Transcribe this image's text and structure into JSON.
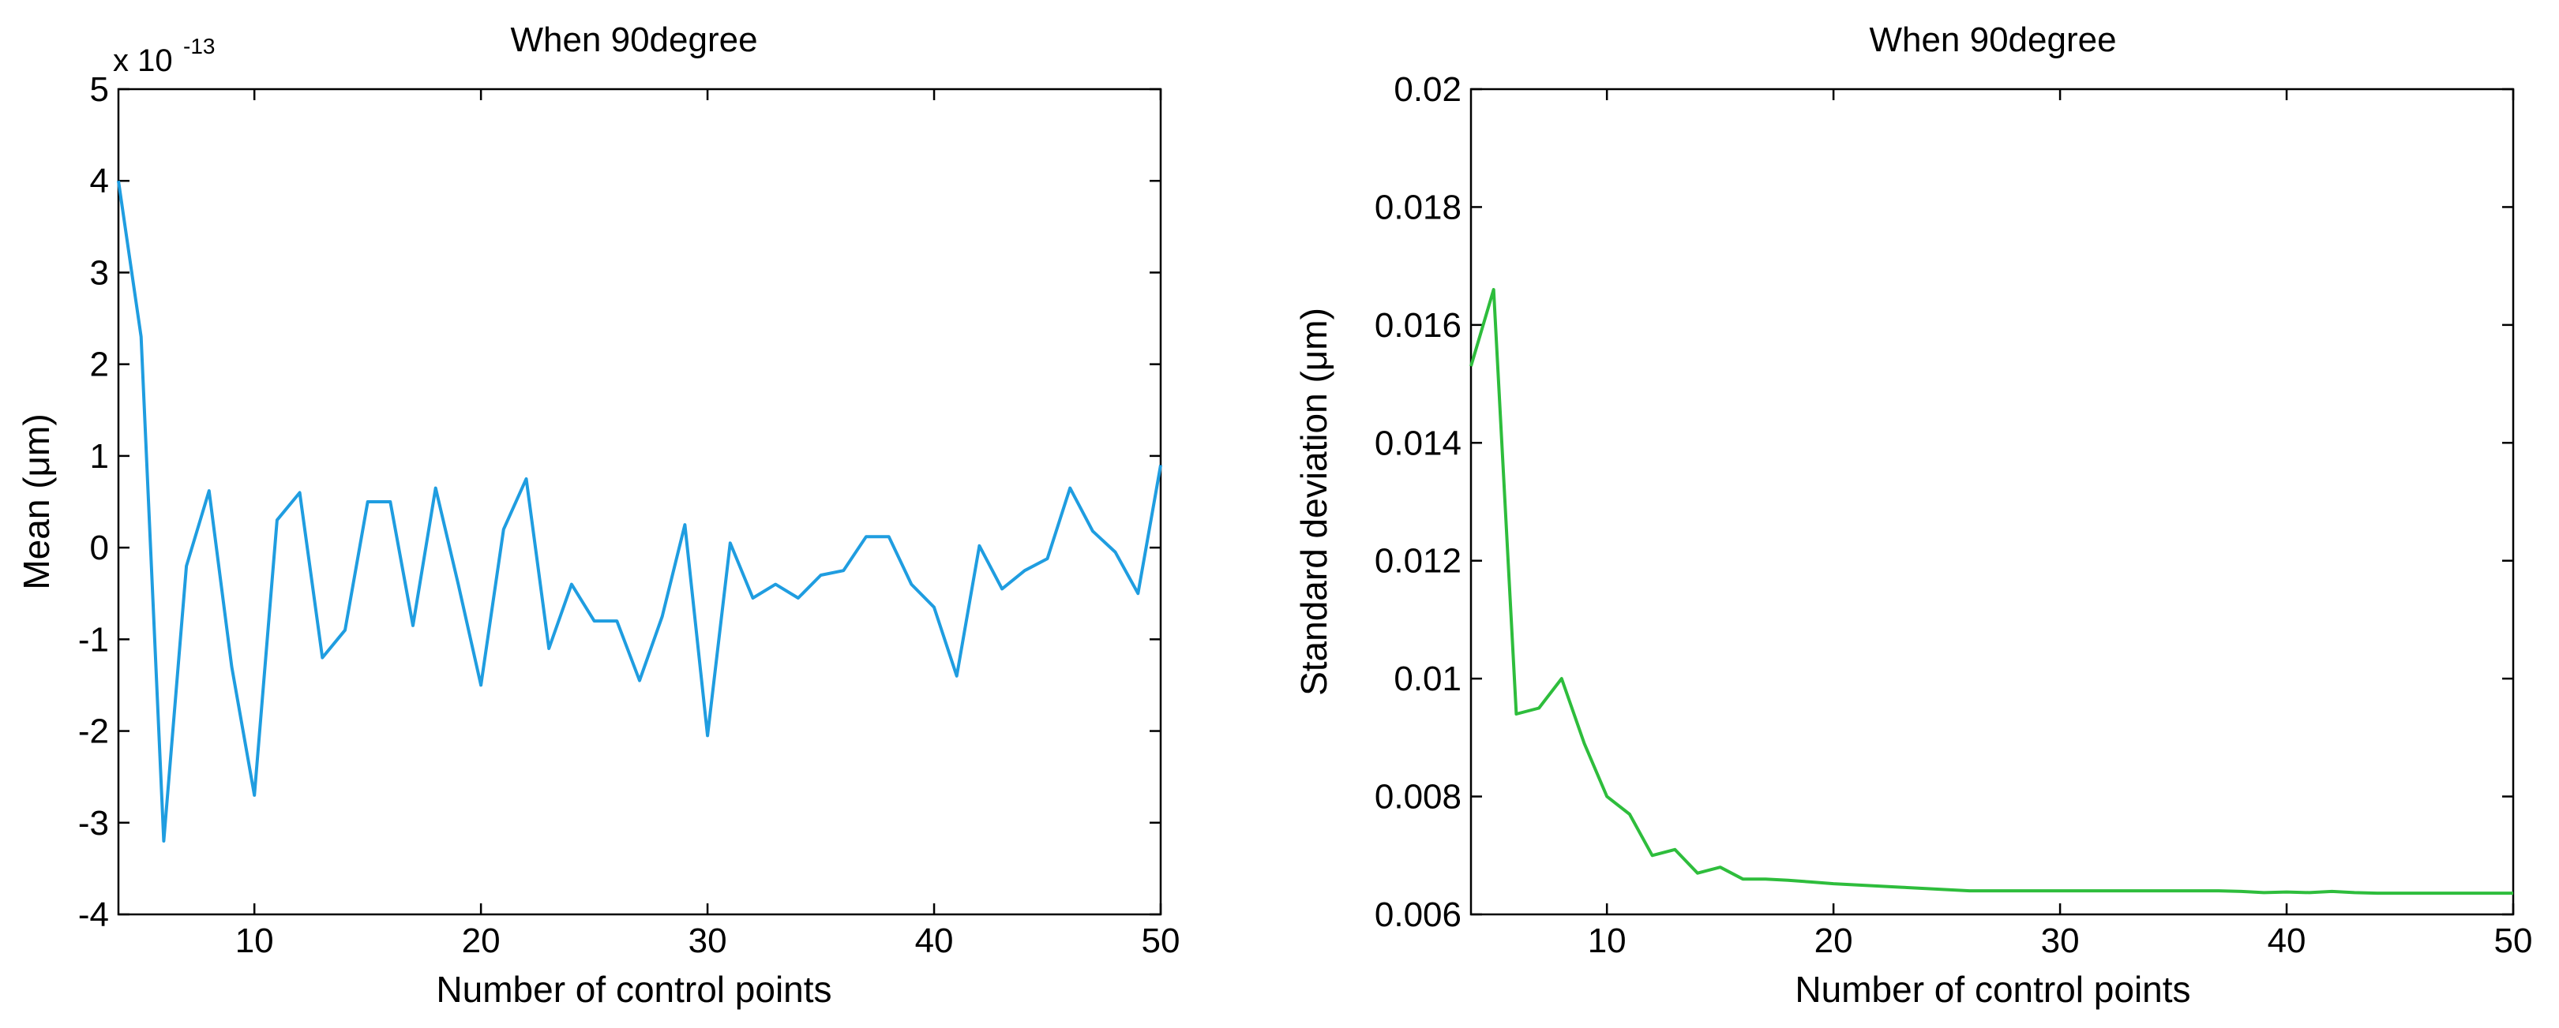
{
  "chart_data": [
    {
      "type": "line",
      "title": "When 90degree",
      "xlabel": "Number of control points",
      "ylabel": "Mean (μm)",
      "xlim": [
        4,
        50
      ],
      "ylim": [
        -4,
        5
      ],
      "xticks": [
        10,
        20,
        30,
        40,
        50
      ],
      "yticks": [
        -4,
        -3,
        -2,
        -1,
        0,
        1,
        2,
        3,
        4,
        5
      ],
      "y_multiplier_base": "x 10",
      "y_multiplier_exponent": "-13",
      "color": "#1f9de0",
      "series": [
        {
          "x": [
            4,
            5,
            6,
            7,
            8,
            9,
            10,
            11,
            12,
            13,
            14,
            15,
            16,
            17,
            18,
            19,
            20,
            21,
            22,
            23,
            24,
            25,
            26,
            27,
            28,
            29,
            30,
            31,
            32,
            33,
            34,
            35,
            36,
            37,
            38,
            39,
            40,
            41,
            42,
            43,
            44,
            45,
            46,
            47,
            48,
            49,
            50
          ],
          "values": [
            4.0,
            2.3,
            -3.2,
            -0.2,
            0.62,
            -1.3,
            -2.7,
            0.3,
            0.6,
            -1.2,
            -0.9,
            0.5,
            0.5,
            -0.85,
            0.65,
            -0.4,
            -1.5,
            0.2,
            0.75,
            -1.1,
            -0.4,
            -0.8,
            -0.8,
            -1.45,
            -0.75,
            0.25,
            -2.05,
            0.05,
            -0.55,
            -0.4,
            -0.55,
            -0.3,
            -0.25,
            0.12,
            0.12,
            -0.4,
            -0.65,
            -1.4,
            0.02,
            -0.45,
            -0.25,
            -0.12,
            0.65,
            0.18,
            -0.05,
            -0.5,
            0.9
          ]
        }
      ]
    },
    {
      "type": "line",
      "title": "When 90degree",
      "xlabel": "Number of control points",
      "ylabel": "Standard deviation (μm)",
      "xlim": [
        4,
        50
      ],
      "ylim": [
        0.006,
        0.02
      ],
      "xticks": [
        10,
        20,
        30,
        40,
        50
      ],
      "yticks": [
        "0.006",
        "0.008",
        "0.01",
        "0.012",
        "0.014",
        "0.016",
        "0.018",
        "0.02"
      ],
      "color": "#2ebd3c",
      "series": [
        {
          "x": [
            4,
            5,
            6,
            7,
            8,
            9,
            10,
            11,
            12,
            13,
            14,
            15,
            16,
            17,
            18,
            19,
            20,
            21,
            22,
            23,
            24,
            25,
            26,
            27,
            28,
            29,
            30,
            31,
            32,
            33,
            34,
            35,
            36,
            37,
            38,
            39,
            40,
            41,
            42,
            43,
            44,
            45,
            46,
            47,
            48,
            49,
            50
          ],
          "values": [
            0.0153,
            0.0166,
            0.0094,
            0.0095,
            0.01,
            0.0089,
            0.008,
            0.0077,
            0.007,
            0.0071,
            0.0067,
            0.0068,
            0.0066,
            0.0066,
            0.00658,
            0.00655,
            0.00652,
            0.0065,
            0.00648,
            0.00646,
            0.00644,
            0.00642,
            0.0064,
            0.0064,
            0.0064,
            0.0064,
            0.0064,
            0.0064,
            0.0064,
            0.0064,
            0.0064,
            0.0064,
            0.0064,
            0.0064,
            0.00639,
            0.00637,
            0.00638,
            0.00637,
            0.00639,
            0.00637,
            0.00636,
            0.00636,
            0.00636,
            0.00636,
            0.00636,
            0.00636,
            0.00636
          ]
        }
      ]
    }
  ]
}
